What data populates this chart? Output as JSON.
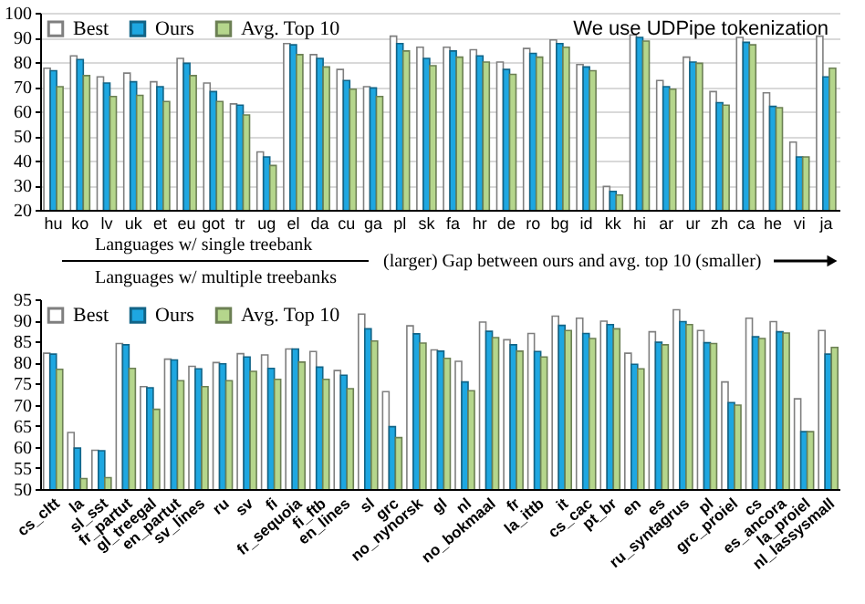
{
  "chart_data": [
    {
      "type": "bar",
      "categories": [
        "hu",
        "ko",
        "lv",
        "uk",
        "et",
        "eu",
        "got",
        "tr",
        "ug",
        "el",
        "da",
        "cu",
        "ga",
        "pl",
        "sk",
        "fa",
        "hr",
        "de",
        "ro",
        "bg",
        "id",
        "kk",
        "hi",
        "ar",
        "ur",
        "zh",
        "ca",
        "he",
        "vi",
        "ja"
      ],
      "series": [
        {
          "name": "Best",
          "color": "#ffffff",
          "values": [
            77.5,
            82.5,
            74,
            75.5,
            72,
            81.5,
            71.5,
            63,
            43.5,
            87.5,
            83,
            77,
            70,
            90.5,
            86,
            86,
            85,
            80,
            85.5,
            89,
            79,
            29.5,
            91,
            72.5,
            82,
            68,
            90,
            67.5,
            47.5,
            90.5
          ]
        },
        {
          "name": "Ours",
          "color": "#1ea7e1",
          "values": [
            76.5,
            81,
            71.5,
            72,
            70,
            79.5,
            68,
            62.5,
            41.5,
            87,
            81.5,
            72.5,
            69.5,
            87.5,
            81.5,
            84.5,
            82.5,
            77,
            83.5,
            87.5,
            78,
            27.5,
            90,
            70,
            80,
            63.5,
            88,
            62,
            41.5,
            74
          ]
        },
        {
          "name": "Avg. Top 10",
          "color": "#b5d68c",
          "values": [
            70,
            74.5,
            66,
            66.5,
            64,
            74.5,
            64,
            58.5,
            38,
            83,
            78,
            69,
            66,
            84.5,
            78.5,
            82,
            80,
            75,
            82,
            86,
            76.5,
            26,
            88.5,
            69,
            79.5,
            62.5,
            87,
            61.5,
            41.5,
            77.5
          ]
        }
      ],
      "ylim": [
        20,
        100
      ],
      "yticks": [
        20,
        30,
        40,
        50,
        60,
        70,
        80,
        90,
        100
      ],
      "grid": "y",
      "legend": "top left",
      "annotations": [
        "We use UDPipe tokenization",
        "Languages w/ single treebank"
      ]
    },
    {
      "type": "bar",
      "categories": [
        "cs_cltt",
        "la",
        "sl_sst",
        "fr_partut",
        "gl_treegal",
        "en_partut",
        "sv_lines",
        "ru",
        "sv",
        "fi",
        "fr_sequoia",
        "fi_ftb",
        "en_lines",
        "sl",
        "grc",
        "no_nynorsk",
        "gl",
        "nl",
        "no_bokmaal",
        "fr",
        "la_ittb",
        "it",
        "cs_cac",
        "pt_br",
        "en",
        "es",
        "ru_syntagrus",
        "pl",
        "grc_proiel",
        "cs",
        "es_ancora",
        "la_proiel",
        "nl_lassysmall"
      ],
      "series": [
        {
          "name": "Best",
          "color": "#ffffff",
          "values": [
            82.2,
            63.4,
            59.2,
            84.5,
            74.3,
            80.8,
            79.1,
            80,
            82.1,
            81.8,
            83.2,
            82.6,
            78.1,
            91.5,
            73.1,
            88.7,
            83,
            80.3,
            89.6,
            85.4,
            86.9,
            91,
            90.5,
            89.8,
            82.2,
            87.3,
            92.5,
            87.6,
            75.4,
            90.5,
            89.7,
            71.4,
            87.6
          ]
        },
        {
          "name": "Ours",
          "color": "#1ea7e1",
          "values": [
            82,
            59.7,
            59.1,
            84.2,
            74,
            80.6,
            78.5,
            79.7,
            81.3,
            78.6,
            83.2,
            78.9,
            77,
            88,
            64.8,
            86.8,
            82.7,
            75.4,
            87.4,
            84.2,
            82.6,
            88.8,
            86.9,
            89,
            79.6,
            84.8,
            89.7,
            84.7,
            70.5,
            86.1,
            87.3,
            63.6,
            82
          ]
        },
        {
          "name": "Avg. Top 10",
          "color": "#b5d68c",
          "values": [
            78.4,
            52.5,
            52.7,
            78.6,
            68.9,
            75.7,
            74.3,
            75.7,
            77.9,
            76,
            80.1,
            76,
            73.8,
            85.1,
            62.2,
            84.6,
            81,
            73.3,
            85.9,
            82.7,
            81.3,
            87.6,
            85.7,
            88,
            78.5,
            84.2,
            89,
            84.5,
            69.9,
            85.7,
            87,
            63.6,
            83.6
          ]
        }
      ],
      "ylim": [
        50,
        95
      ],
      "yticks": [
        50,
        55,
        60,
        65,
        70,
        75,
        80,
        85,
        90,
        95
      ],
      "legend": "top left",
      "annotations": [
        "Languages w/ multiple treebanks",
        "(larger) Gap between ours and avg. top 10 (smaller)"
      ]
    }
  ]
}
